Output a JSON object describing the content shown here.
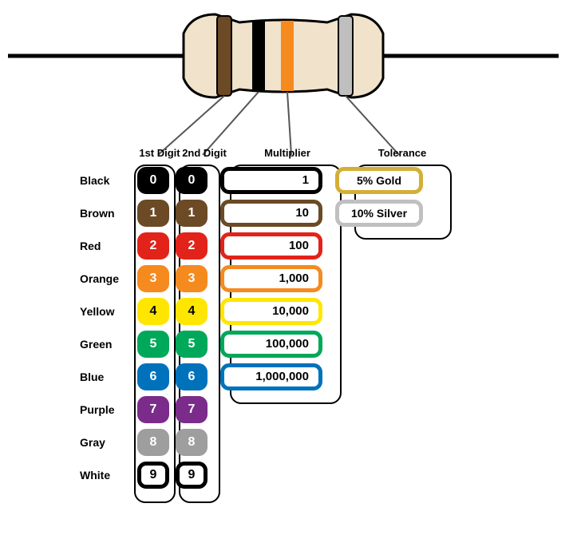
{
  "diagram": {
    "type": "infographic",
    "background_color": "#ffffff",
    "resistor": {
      "body_color": "#f1e2cb",
      "body_stroke": "#000000",
      "body_stroke_width": 3,
      "wire_color": "#000000",
      "wire_width": 5,
      "bands": [
        {
          "color": "#6b4a25",
          "name": "band-1"
        },
        {
          "color": "#000000",
          "name": "band-2"
        },
        {
          "color": "#f58a1f",
          "name": "band-3"
        },
        {
          "color": "#999999",
          "name": "band-4"
        }
      ],
      "lead_line_color": "#555555",
      "lead_line_width": 2
    },
    "headers": {
      "digit1": "1st Digit",
      "digit2": "2nd Digit",
      "multiplier": "Multiplier",
      "tolerance": "Tolerance"
    },
    "column_outline": {
      "stroke": "#000000",
      "stroke_width": 2,
      "radius": 14
    },
    "pill_style": {
      "border_width": 5,
      "radius": 11,
      "font_size": 16
    },
    "rows": [
      {
        "label": "Black",
        "bg": "#000000",
        "fg": "#ffffff",
        "d1": "0",
        "d2": "0",
        "mult": "1"
      },
      {
        "label": "Brown",
        "bg": "#6b4a25",
        "fg": "#ffffff",
        "d1": "1",
        "d2": "1",
        "mult": "10"
      },
      {
        "label": "Red",
        "bg": "#e2231a",
        "fg": "#ffffff",
        "d1": "2",
        "d2": "2",
        "mult": "100"
      },
      {
        "label": "Orange",
        "bg": "#f58a1f",
        "fg": "#ffffff",
        "d1": "3",
        "d2": "3",
        "mult": "1,000"
      },
      {
        "label": "Yellow",
        "bg": "#ffe600",
        "fg": "#000000",
        "d1": "4",
        "d2": "4",
        "mult": "10,000"
      },
      {
        "label": "Green",
        "bg": "#00a859",
        "fg": "#ffffff",
        "d1": "5",
        "d2": "5",
        "mult": "100,000"
      },
      {
        "label": "Blue",
        "bg": "#0072bc",
        "fg": "#ffffff",
        "d1": "6",
        "d2": "6",
        "mult": "1,000,000"
      },
      {
        "label": "Purple",
        "bg": "#7b2b8a",
        "fg": "#ffffff",
        "d1": "7",
        "d2": "7"
      },
      {
        "label": "Gray",
        "bg": "#9e9e9e",
        "fg": "#ffffff",
        "d1": "8",
        "d2": "8"
      },
      {
        "label": "White",
        "bg": "#ffffff",
        "fg": "#000000",
        "d1": "9",
        "d2": "9",
        "border_only": true
      }
    ],
    "tolerance": [
      {
        "label": "5% Gold",
        "bg": "#d4af37"
      },
      {
        "label": "10% Silver",
        "bg": "#c0c0c0"
      }
    ]
  }
}
